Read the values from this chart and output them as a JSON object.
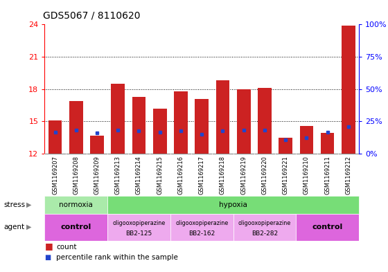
{
  "title": "GDS5067 / 8110620",
  "samples": [
    "GSM1169207",
    "GSM1169208",
    "GSM1169209",
    "GSM1169213",
    "GSM1169214",
    "GSM1169215",
    "GSM1169216",
    "GSM1169217",
    "GSM1169218",
    "GSM1169219",
    "GSM1169220",
    "GSM1169221",
    "GSM1169210",
    "GSM1169211",
    "GSM1169212"
  ],
  "counts": [
    15.1,
    16.9,
    13.7,
    18.5,
    17.3,
    16.2,
    17.8,
    17.1,
    18.8,
    18.0,
    18.1,
    13.5,
    14.6,
    13.9,
    23.9
  ],
  "percentile_ranks": [
    14.0,
    14.2,
    13.9,
    14.2,
    14.1,
    14.0,
    14.1,
    13.8,
    14.1,
    14.2,
    14.2,
    13.3,
    13.5,
    14.0,
    14.5
  ],
  "ymin": 12,
  "ymax": 24,
  "yticks_left": [
    12,
    15,
    18,
    21,
    24
  ],
  "yticks_right": [
    0,
    25,
    50,
    75,
    100
  ],
  "bar_color": "#cc2222",
  "blue_color": "#2244cc",
  "normoxia_color": "#aaeaaa",
  "hypoxia_color": "#77dd77",
  "control_color": "#dd66dd",
  "oligo_color": "#eeaaee",
  "bg_color": "#ffffff",
  "tick_bg_color": "#cccccc"
}
